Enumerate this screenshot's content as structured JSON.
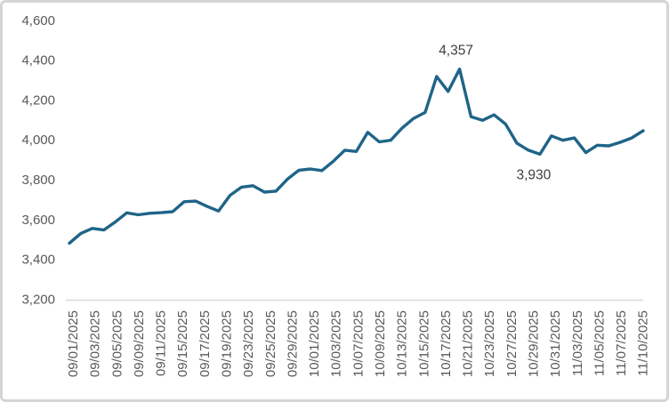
{
  "chart_data": {
    "type": "line",
    "title": "",
    "xlabel": "",
    "ylabel": "",
    "grid": false,
    "legend": false,
    "line_color": "#1f6488",
    "axis_line_color": "#d9d9d9",
    "tick_label_color": "#595959",
    "annotation_color": "#3f3f3f",
    "ylim": [
      3200,
      4600
    ],
    "y_axis": {
      "values": [
        3200,
        3400,
        3600,
        3800,
        4000,
        4200,
        4400,
        4600
      ],
      "labels": [
        "3,200",
        "3,400",
        "3,600",
        "3,800",
        "4,000",
        "4,200",
        "4,400",
        "4,600"
      ]
    },
    "x_tick_labels": [
      "09/01/2025",
      "09/03/2025",
      "09/05/2025",
      "09/09/2025",
      "09/11/2025",
      "09/15/2025",
      "09/17/2025",
      "09/19/2025",
      "09/23/2025",
      "09/25/2025",
      "09/29/2025",
      "10/01/2025",
      "10/03/2025",
      "10/07/2025",
      "10/09/2025",
      "10/13/2025",
      "10/15/2025",
      "10/17/2025",
      "10/21/2025",
      "10/23/2025",
      "10/27/2025",
      "10/29/2025",
      "10/31/2025",
      "11/03/2025",
      "11/05/2025",
      "11/07/2025",
      "11/10/2025"
    ],
    "dates": [
      "09/01/2025",
      "09/02/2025",
      "09/03/2025",
      "09/04/2025",
      "09/05/2025",
      "09/08/2025",
      "09/09/2025",
      "09/10/2025",
      "09/11/2025",
      "09/12/2025",
      "09/15/2025",
      "09/16/2025",
      "09/17/2025",
      "09/18/2025",
      "09/19/2025",
      "09/22/2025",
      "09/23/2025",
      "09/24/2025",
      "09/25/2025",
      "09/26/2025",
      "09/29/2025",
      "09/30/2025",
      "10/01/2025",
      "10/02/2025",
      "10/03/2025",
      "10/06/2025",
      "10/07/2025",
      "10/08/2025",
      "10/09/2025",
      "10/10/2025",
      "10/13/2025",
      "10/14/2025",
      "10/15/2025",
      "10/16/2025",
      "10/17/2025",
      "10/20/2025",
      "10/21/2025",
      "10/22/2025",
      "10/23/2025",
      "10/24/2025",
      "10/27/2025",
      "10/28/2025",
      "10/29/2025",
      "10/30/2025",
      "10/31/2025",
      "11/03/2025",
      "11/04/2025",
      "11/05/2025",
      "11/06/2025",
      "11/07/2025",
      "11/10/2025"
    ],
    "values": [
      3484,
      3533,
      3558,
      3550,
      3590,
      3636,
      3626,
      3634,
      3637,
      3642,
      3692,
      3695,
      3668,
      3645,
      3724,
      3765,
      3772,
      3740,
      3745,
      3805,
      3850,
      3856,
      3848,
      3895,
      3950,
      3944,
      4040,
      3992,
      4000,
      4062,
      4110,
      4140,
      4320,
      4245,
      4357,
      4118,
      4100,
      4128,
      4082,
      3985,
      3950,
      3930,
      4022,
      4000,
      4012,
      3938,
      3975,
      3972,
      3990,
      4012,
      4048
    ],
    "annotations": [
      {
        "label": "4,357",
        "date": "10/17/2025",
        "value": 4357,
        "placement": "above"
      },
      {
        "label": "3,930",
        "date": "10/28/2025",
        "value": 3930,
        "placement": "below"
      }
    ]
  }
}
